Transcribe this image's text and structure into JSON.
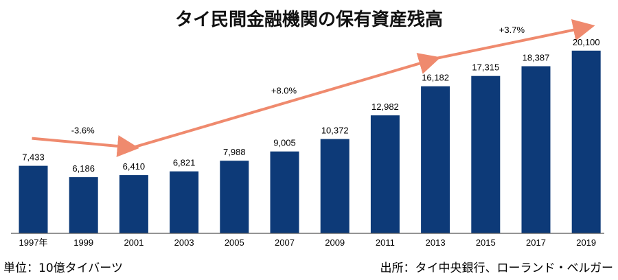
{
  "colors": {
    "bar": "#0d3a78",
    "arrow": "#ef8a6e",
    "axis": "#555555"
  },
  "chart_data": {
    "type": "bar",
    "title": "タイ民間金融機関の保有資産残高",
    "categories": [
      "1997年",
      "1999",
      "2001",
      "2003",
      "2005",
      "2007",
      "2009",
      "2011",
      "2013",
      "2015",
      "2017",
      "2019"
    ],
    "values": [
      7433,
      6186,
      6410,
      6821,
      7988,
      9005,
      10372,
      12982,
      16182,
      17315,
      18387,
      20100
    ],
    "value_labels": [
      "7,433",
      "6,186",
      "6,410",
      "6,821",
      "7,988",
      "9,005",
      "10,372",
      "12,982",
      "16,182",
      "17,315",
      "18,387",
      "20,100"
    ],
    "ylim": [
      0,
      22500
    ],
    "grid": false,
    "growth_annotations": [
      {
        "label": "-3.6%",
        "from": "1997年",
        "to": "2001"
      },
      {
        "label": "+8.0%",
        "from": "2001",
        "to": "2013"
      },
      {
        "label": "+3.7%",
        "from": "2013",
        "to": "2019"
      }
    ]
  },
  "footer": {
    "unit": "単位：10億タイバーツ",
    "source": "出所：タイ中央銀行、ローランド・ベルガー"
  }
}
